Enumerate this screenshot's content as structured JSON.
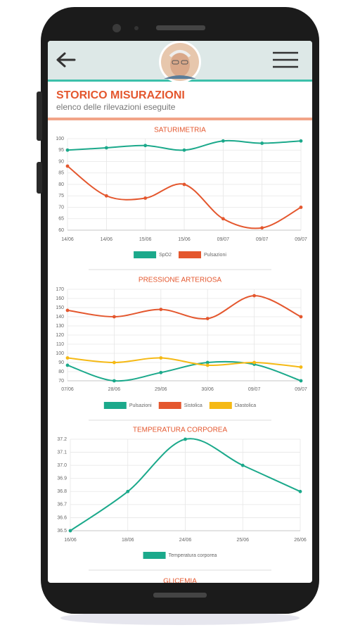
{
  "header": {
    "title": "STORICO MISURAZIONI",
    "subtitle": "elenco delle rilevazioni eseguite"
  },
  "chart_data": [
    {
      "type": "line",
      "title": "SATURIMETRIA",
      "categories": [
        "14/06",
        "14/06",
        "15/06",
        "15/06",
        "09/07",
        "09/07",
        "09/07"
      ],
      "ylim": [
        60,
        100
      ],
      "yticks": [
        60,
        65,
        70,
        75,
        80,
        85,
        90,
        95,
        100
      ],
      "grid": true,
      "series": [
        {
          "name": "SpO2",
          "color": "#1ba98b",
          "values": [
            95,
            96,
            97,
            95,
            99,
            98,
            99
          ]
        },
        {
          "name": "Pulsazioni",
          "color": "#e4572e",
          "values": [
            88,
            75,
            74,
            80,
            65,
            61,
            70
          ]
        }
      ]
    },
    {
      "type": "line",
      "title": "PRESSIONE ARTERIOSA",
      "categories": [
        "07/06",
        "28/06",
        "29/06",
        "30/06",
        "09/07",
        "09/07"
      ],
      "ylim": [
        70,
        170
      ],
      "yticks": [
        70,
        80,
        90,
        100,
        110,
        120,
        130,
        140,
        150,
        160,
        170
      ],
      "grid": true,
      "series": [
        {
          "name": "Pulsazioni",
          "color": "#1ba98b",
          "values": [
            87,
            70,
            79,
            90,
            88,
            70
          ]
        },
        {
          "name": "Sistolica",
          "color": "#e4572e",
          "values": [
            147,
            140,
            148,
            138,
            163,
            140
          ]
        },
        {
          "name": "Diastolica",
          "color": "#f5b914",
          "values": [
            95,
            90,
            95,
            87,
            90,
            85
          ]
        }
      ]
    },
    {
      "type": "line",
      "title": "TEMPERATURA CORPOREA",
      "categories": [
        "16/06",
        "18/06",
        "24/06",
        "25/06",
        "26/06"
      ],
      "ylim": [
        36.5,
        37.2
      ],
      "yticks": [
        36.5,
        36.6,
        36.7,
        36.8,
        36.9,
        {
          "value": 37,
          "label": "37.0"
        },
        37.1,
        37.2
      ],
      "grid": true,
      "series": [
        {
          "name": "Temperatura corporea",
          "color": "#1ba98b",
          "values": [
            36.5,
            36.8,
            37.2,
            37.0,
            36.8
          ]
        }
      ]
    },
    {
      "type": "line",
      "title": "GLICEMIA"
    }
  ]
}
